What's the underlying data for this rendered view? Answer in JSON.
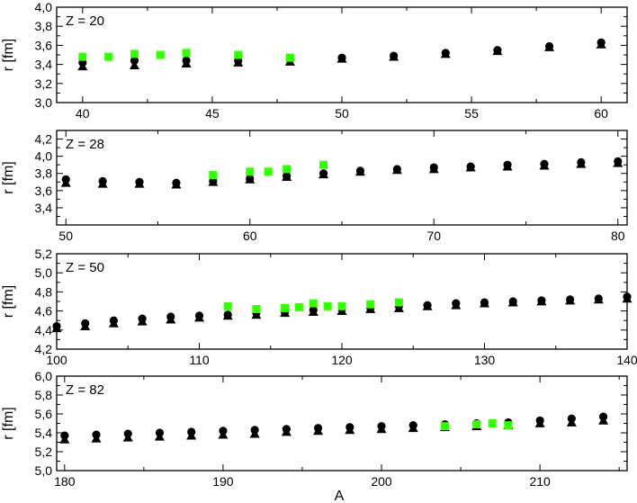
{
  "chart_data": [
    {
      "type": "scatter",
      "panel_label": "Z = 20",
      "ylabel": "r  [fm]",
      "xlim": [
        39,
        61
      ],
      "ylim": [
        3.0,
        4.0
      ],
      "xticks": [
        40,
        45,
        50,
        55,
        60
      ],
      "yticks": [
        3.0,
        3.2,
        3.4,
        3.6,
        3.8,
        4.0
      ],
      "x_tick_labels": [
        "40",
        "45",
        "50",
        "55",
        "60"
      ],
      "y_tick_labels": [
        "3,0",
        "3,2",
        "3,4",
        "3,6",
        "3,8",
        "4,0"
      ],
      "series": [
        {
          "marker": "circle",
          "color": "#000000",
          "x": [
            40,
            42,
            44,
            46,
            48,
            50,
            52,
            54,
            56,
            58,
            60
          ],
          "y": [
            3.42,
            3.44,
            3.44,
            3.44,
            3.45,
            3.47,
            3.49,
            3.52,
            3.55,
            3.59,
            3.63
          ]
        },
        {
          "marker": "triangle",
          "color": "#000000",
          "x": [
            40,
            42,
            44,
            46,
            48,
            50,
            52,
            54,
            56,
            58,
            60
          ],
          "y": [
            3.38,
            3.39,
            3.41,
            3.42,
            3.43,
            3.46,
            3.48,
            3.51,
            3.54,
            3.58,
            3.61
          ]
        },
        {
          "marker": "square",
          "color": "#33ff00",
          "x": [
            40,
            41,
            42,
            43,
            44,
            46,
            48
          ],
          "y": [
            3.48,
            3.48,
            3.51,
            3.5,
            3.52,
            3.5,
            3.47
          ]
        }
      ]
    },
    {
      "type": "scatter",
      "panel_label": "Z = 28",
      "ylabel": "r  [fm]",
      "xlim": [
        49.5,
        80.5
      ],
      "ylim": [
        3.2,
        4.3
      ],
      "xticks": [
        50,
        60,
        70,
        80
      ],
      "yticks": [
        3.4,
        3.6,
        3.8,
        4.0,
        4.2
      ],
      "x_tick_labels": [
        "50",
        "60",
        "70",
        "80"
      ],
      "y_tick_labels": [
        "3,4",
        "3,6",
        "3,8",
        "4,0",
        "4,2"
      ],
      "series": [
        {
          "marker": "circle",
          "color": "#000000",
          "x": [
            50,
            52,
            54,
            56,
            58,
            60,
            62,
            64,
            66,
            68,
            70,
            72,
            74,
            76,
            78,
            80
          ],
          "y": [
            3.73,
            3.71,
            3.7,
            3.69,
            3.71,
            3.74,
            3.77,
            3.8,
            3.83,
            3.85,
            3.87,
            3.88,
            3.9,
            3.91,
            3.93,
            3.94
          ]
        },
        {
          "marker": "triangle",
          "color": "#000000",
          "x": [
            50,
            52,
            54,
            56,
            58,
            60,
            62,
            64,
            66,
            68,
            70,
            72,
            74,
            76,
            78,
            80
          ],
          "y": [
            3.69,
            3.68,
            3.68,
            3.67,
            3.7,
            3.73,
            3.76,
            3.79,
            3.82,
            3.84,
            3.85,
            3.87,
            3.88,
            3.89,
            3.91,
            3.92
          ]
        },
        {
          "marker": "square",
          "color": "#33ff00",
          "x": [
            58,
            60,
            61,
            62,
            64
          ],
          "y": [
            3.78,
            3.82,
            3.82,
            3.85,
            3.9
          ]
        }
      ]
    },
    {
      "type": "scatter",
      "panel_label": "Z = 50",
      "ylabel": "r  [fm]",
      "xlim": [
        100,
        140
      ],
      "ylim": [
        4.2,
        5.2
      ],
      "xticks": [
        100,
        110,
        120,
        130,
        140
      ],
      "yticks": [
        4.2,
        4.4,
        4.6,
        4.8,
        5.0,
        5.2
      ],
      "x_tick_labels": [
        "100",
        "110",
        "120",
        "130",
        "140"
      ],
      "y_tick_labels": [
        "4,2",
        "4,4",
        "4,6",
        "4,8",
        "5,0",
        "5,2"
      ],
      "series": [
        {
          "marker": "circle",
          "color": "#000000",
          "x": [
            100,
            102,
            104,
            106,
            108,
            110,
            112,
            114,
            116,
            118,
            120,
            122,
            124,
            126,
            128,
            130,
            132,
            134,
            136,
            138,
            140
          ],
          "y": [
            4.44,
            4.47,
            4.5,
            4.52,
            4.54,
            4.55,
            4.56,
            4.58,
            4.59,
            4.61,
            4.62,
            4.63,
            4.65,
            4.66,
            4.68,
            4.69,
            4.7,
            4.71,
            4.72,
            4.73,
            4.75
          ]
        },
        {
          "marker": "triangle",
          "color": "#000000",
          "x": [
            100,
            102,
            104,
            106,
            108,
            110,
            112,
            114,
            116,
            118,
            120,
            122,
            124,
            126,
            128,
            130,
            132,
            134,
            136,
            138,
            140
          ],
          "y": [
            4.42,
            4.44,
            4.47,
            4.49,
            4.51,
            4.53,
            4.55,
            4.56,
            4.58,
            4.59,
            4.6,
            4.62,
            4.63,
            4.65,
            4.66,
            4.68,
            4.69,
            4.7,
            4.71,
            4.72,
            4.73
          ]
        },
        {
          "marker": "square",
          "color": "#33ff00",
          "x": [
            112,
            114,
            116,
            117,
            118,
            119,
            120,
            122,
            124
          ],
          "y": [
            4.65,
            4.62,
            4.63,
            4.64,
            4.68,
            4.65,
            4.65,
            4.67,
            4.69
          ]
        }
      ]
    },
    {
      "type": "scatter",
      "panel_label": "Z = 82",
      "ylabel": "r  [fm]",
      "xlabel": "A",
      "xlim": [
        179.5,
        215.5
      ],
      "ylim": [
        5.0,
        6.0
      ],
      "xticks": [
        180,
        190,
        200,
        210
      ],
      "yticks": [
        5.0,
        5.2,
        5.4,
        5.6,
        5.8,
        6.0
      ],
      "x_tick_labels": [
        "180",
        "190",
        "200",
        "210"
      ],
      "y_tick_labels": [
        "5,0",
        "5,2",
        "5,4",
        "5,6",
        "5,8",
        "6,0"
      ],
      "series": [
        {
          "marker": "circle",
          "color": "#000000",
          "x": [
            180,
            182,
            184,
            186,
            188,
            190,
            192,
            194,
            196,
            198,
            200,
            202,
            204,
            206,
            208,
            210,
            212,
            214
          ],
          "y": [
            5.37,
            5.38,
            5.39,
            5.4,
            5.41,
            5.42,
            5.43,
            5.44,
            5.45,
            5.46,
            5.47,
            5.48,
            5.49,
            5.5,
            5.51,
            5.53,
            5.55,
            5.57
          ]
        },
        {
          "marker": "triangle",
          "color": "#000000",
          "x": [
            180,
            182,
            184,
            186,
            188,
            190,
            192,
            194,
            196,
            198,
            200,
            202,
            204,
            206,
            208,
            210,
            212,
            214
          ],
          "y": [
            5.33,
            5.34,
            5.35,
            5.36,
            5.37,
            5.38,
            5.39,
            5.41,
            5.42,
            5.43,
            5.44,
            5.45,
            5.46,
            5.47,
            5.48,
            5.5,
            5.51,
            5.53
          ]
        },
        {
          "marker": "square",
          "color": "#33ff00",
          "x": [
            204,
            206,
            207,
            208
          ],
          "y": [
            5.47,
            5.49,
            5.5,
            5.48
          ]
        }
      ]
    }
  ]
}
